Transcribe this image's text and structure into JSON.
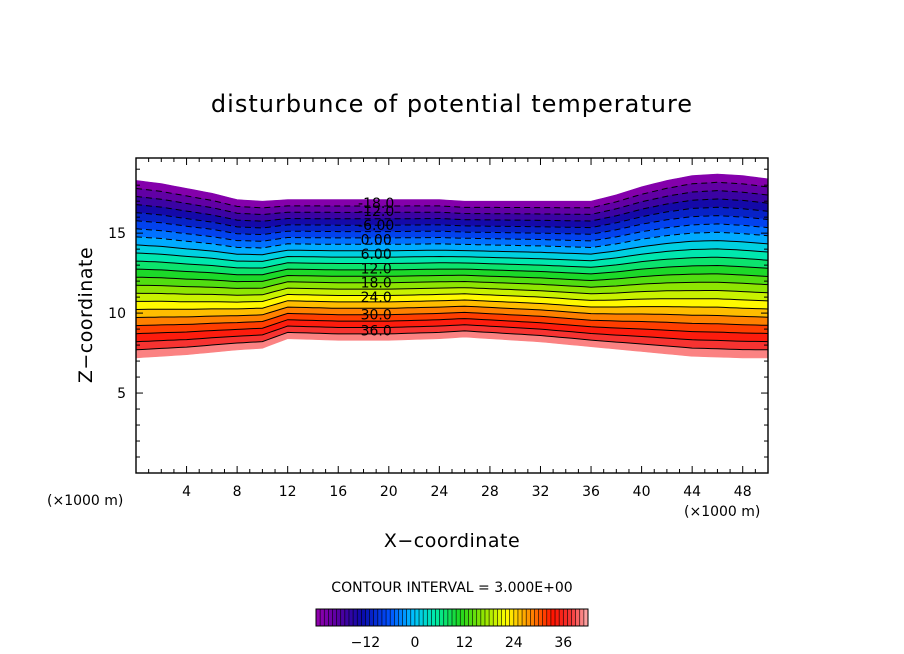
{
  "chart_data": {
    "type": "contour",
    "title": "disturbunce of potential temperature",
    "xlabel": "X−coordinate",
    "ylabel": "Z−coordinate",
    "x_unit": "(×1000 m)",
    "z_unit": "(×1000 m)",
    "xlim": [
      0,
      50
    ],
    "ylim": [
      0,
      19.7
    ],
    "x_ticks": [
      4,
      8,
      12,
      16,
      20,
      24,
      28,
      32,
      36,
      40,
      44,
      48
    ],
    "y_ticks": [
      5,
      10,
      15
    ],
    "contour_interval": 3.0,
    "contour_interval_text": "CONTOUR INTERVAL = 3.000E+00",
    "value_range": [
      -24,
      42
    ],
    "negative_contours_dashed": true,
    "top_boundary": {
      "x": [
        0,
        2,
        4,
        6,
        8,
        10,
        12,
        16,
        20,
        24,
        26,
        28,
        32,
        36,
        38,
        40,
        42,
        44,
        46,
        48,
        50
      ],
      "z": [
        18.3,
        18.1,
        17.8,
        17.5,
        17.1,
        17.0,
        17.1,
        17.1,
        17.1,
        17.1,
        17.0,
        17.0,
        17.0,
        17.0,
        17.4,
        17.9,
        18.3,
        18.6,
        18.7,
        18.6,
        18.4
      ]
    },
    "bottom_boundary": {
      "x": [
        0,
        4,
        8,
        10,
        11,
        12,
        16,
        20,
        24,
        26,
        28,
        32,
        36,
        40,
        44,
        48,
        50
      ],
      "z": [
        7.2,
        7.4,
        7.7,
        7.8,
        8.1,
        8.4,
        8.3,
        8.3,
        8.4,
        8.5,
        8.4,
        8.2,
        7.9,
        7.6,
        7.3,
        7.2,
        7.2
      ]
    },
    "contour_labels": [
      {
        "value": -18.0,
        "text": "-18.0",
        "z": 16.9
      },
      {
        "value": -12.0,
        "text": "-12.0",
        "z": 16.4
      },
      {
        "value": -6.0,
        "text": "-6.00",
        "z": 15.5
      },
      {
        "value": 0.0,
        "text": "0.00",
        "z": 14.6
      },
      {
        "value": 6.0,
        "text": "6.00",
        "z": 13.7
      },
      {
        "value": 12.0,
        "text": "12.0",
        "z": 12.8
      },
      {
        "value": 18.0,
        "text": "18.0",
        "z": 11.9
      },
      {
        "value": 24.0,
        "text": "24.0",
        "z": 11.0
      },
      {
        "value": 30.0,
        "text": "30.0",
        "z": 9.9
      },
      {
        "value": 36.0,
        "text": "36.0",
        "z": 8.9
      }
    ],
    "contour_label_x": 19,
    "colorbar": {
      "min": -24,
      "max": 42,
      "ticks": [
        -12,
        0,
        12,
        24,
        36
      ],
      "tick_labels": [
        "−12",
        "0",
        "12",
        "24",
        "36"
      ]
    }
  }
}
